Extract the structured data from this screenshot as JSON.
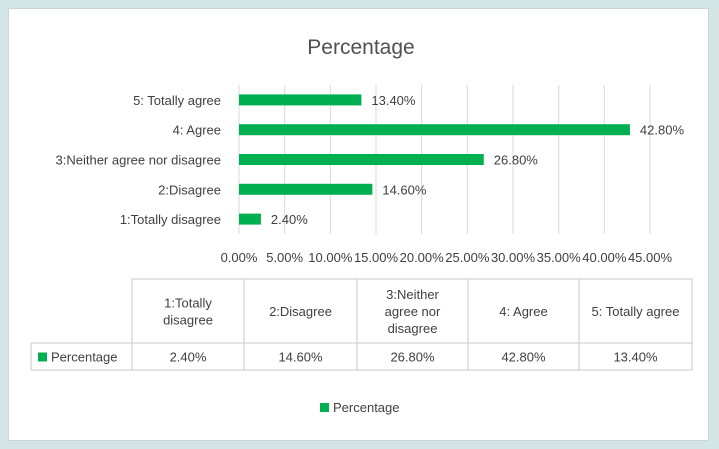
{
  "chart_data": {
    "type": "bar",
    "orientation": "horizontal",
    "title": "Percentage",
    "categories": [
      "1:Totally disagree",
      "2:Disagree",
      "3:Neither agree nor disagree",
      "4: Agree",
      "5: Totally agree"
    ],
    "series": [
      {
        "name": "Percentage",
        "values": [
          2.4,
          14.6,
          26.8,
          42.8,
          13.4
        ],
        "labels": [
          "2.40%",
          "14.60%",
          "26.80%",
          "42.80%",
          "13.40%"
        ],
        "color": "#00b050"
      }
    ],
    "xlim": [
      0,
      45
    ],
    "x_ticks": [
      "0.00%",
      "5.00%",
      "10.00%",
      "15.00%",
      "20.00%",
      "25.00%",
      "30.00%",
      "35.00%",
      "40.00%",
      "45.00%"
    ],
    "gridlines": true,
    "data_table": {
      "headers": [
        [
          "1:Totally",
          "disagree"
        ],
        [
          "2:Disagree"
        ],
        [
          "3:Neither",
          "agree nor",
          "disagree"
        ],
        [
          "4: Agree"
        ],
        [
          "5: Totally agree"
        ]
      ],
      "row_label": "Percentage",
      "row_values": [
        "2.40%",
        "14.60%",
        "26.80%",
        "42.80%",
        "13.40%"
      ]
    },
    "legend": {
      "position": "bottom",
      "entries": [
        "Percentage"
      ]
    }
  }
}
